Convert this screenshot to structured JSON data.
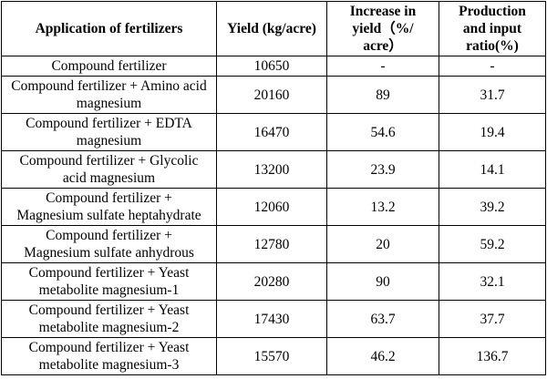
{
  "table": {
    "header": [
      "Application of fertilizers",
      "Yield (kg/acre)",
      "Increase in yield（%/ acre）",
      "Production and input ratio(%)"
    ],
    "rows": [
      [
        "Compound fertilizer",
        10650,
        "-",
        "-"
      ],
      [
        "Compound fertilizer + Amino acid magnesium",
        20160,
        89,
        31.7
      ],
      [
        "Compound fertilizer + EDTA magnesium",
        16470,
        54.6,
        19.4
      ],
      [
        "Compound fertilizer + Glycolic acid magnesium",
        13200,
        23.9,
        14.1
      ],
      [
        "Compound fertilizer + Magnesium sulfate heptahydrate",
        12060,
        13.2,
        39.2
      ],
      [
        "Compound fertilizer + Magnesium sulfate anhydrous",
        12780,
        20,
        59.2
      ],
      [
        "Compound fertilizer + Yeast metabolite magnesium-1",
        20280,
        90,
        32.1
      ],
      [
        "Compound fertilizer + Yeast metabolite magnesium-2",
        17430,
        63.7,
        37.7
      ],
      [
        "Compound fertilizer + Yeast metabolite magnesium-3",
        15570,
        46.2,
        136.7
      ]
    ]
  }
}
